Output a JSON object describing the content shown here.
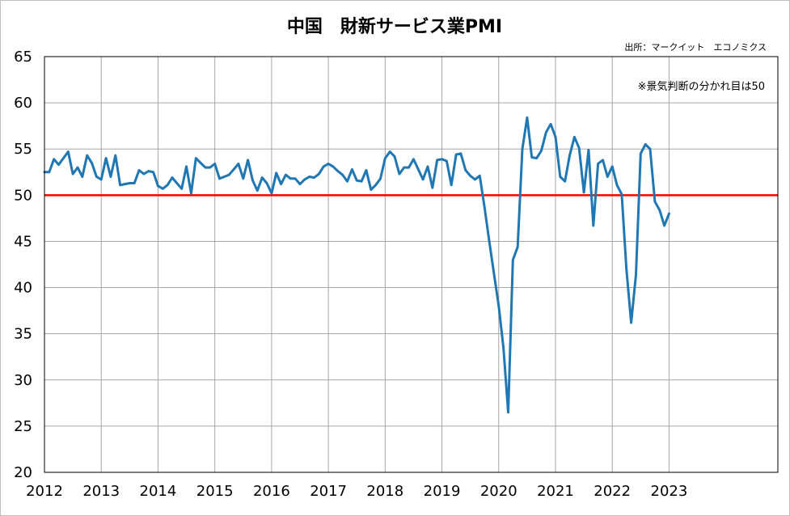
{
  "chart_data": {
    "type": "line",
    "title": "中国　財新サービス業PMI",
    "source": "出所：マークイット　エコノミクス",
    "note": "※景気判断の分かれ目は50",
    "ylim": [
      20,
      65
    ],
    "yticks": [
      "20",
      "25",
      "30",
      "35",
      "40",
      "45",
      "50",
      "55",
      "60",
      "65"
    ],
    "xticks": [
      "2012",
      "2013",
      "2014",
      "2015",
      "2016",
      "2017",
      "2018",
      "2019",
      "2020",
      "2021",
      "2022",
      "2023"
    ],
    "xlim": [
      "2012-01",
      "2024-12"
    ],
    "grid": true,
    "reference_line": {
      "value": 50,
      "color": "#ff0000"
    },
    "series": [
      {
        "color": "#1f77b4",
        "x": [
          "2012-01",
          "2012-02",
          "2012-03",
          "2012-04",
          "2012-05",
          "2012-06",
          "2012-07",
          "2012-08",
          "2012-09",
          "2012-10",
          "2012-11",
          "2012-12",
          "2013-01",
          "2013-02",
          "2013-03",
          "2013-04",
          "2013-05",
          "2013-06",
          "2013-07",
          "2013-08",
          "2013-09",
          "2013-10",
          "2013-11",
          "2013-12",
          "2014-01",
          "2014-02",
          "2014-03",
          "2014-04",
          "2014-05",
          "2014-06",
          "2014-07",
          "2014-08",
          "2014-09",
          "2014-10",
          "2014-11",
          "2014-12",
          "2015-01",
          "2015-02",
          "2015-03",
          "2015-04",
          "2015-05",
          "2015-06",
          "2015-07",
          "2015-08",
          "2015-09",
          "2015-10",
          "2015-11",
          "2015-12",
          "2016-01",
          "2016-02",
          "2016-03",
          "2016-04",
          "2016-05",
          "2016-06",
          "2016-07",
          "2016-08",
          "2016-09",
          "2016-10",
          "2016-11",
          "2016-12",
          "2017-01",
          "2017-02",
          "2017-03",
          "2017-04",
          "2017-05",
          "2017-06",
          "2017-07",
          "2017-08",
          "2017-09",
          "2017-10",
          "2017-11",
          "2017-12",
          "2018-01",
          "2018-02",
          "2018-03",
          "2018-04",
          "2018-05",
          "2018-06",
          "2018-07",
          "2018-08",
          "2018-09",
          "2018-10",
          "2018-11",
          "2018-12",
          "2019-01",
          "2019-02",
          "2019-03",
          "2019-04",
          "2019-05",
          "2019-06",
          "2019-07",
          "2019-08",
          "2019-09",
          "2019-10",
          "2019-11",
          "2019-12",
          "2020-01",
          "2020-02",
          "2020-03",
          "2020-04",
          "2020-05",
          "2020-06",
          "2020-07",
          "2020-08",
          "2020-09",
          "2020-10",
          "2020-11",
          "2020-12",
          "2021-01",
          "2021-02",
          "2021-03",
          "2021-04",
          "2021-05",
          "2021-06",
          "2021-07",
          "2021-08",
          "2021-09",
          "2021-10",
          "2021-11",
          "2021-12",
          "2022-01",
          "2022-02",
          "2022-03",
          "2022-04",
          "2022-05",
          "2022-06",
          "2022-07",
          "2022-08",
          "2022-09",
          "2022-10",
          "2022-11",
          "2022-12",
          "2023-01"
        ],
        "values": [
          52.5,
          52.5,
          53.9,
          53.3,
          54.0,
          54.7,
          52.3,
          53.0,
          52.0,
          54.3,
          53.5,
          52.0,
          51.7,
          54.0,
          52.0,
          54.3,
          51.1,
          51.2,
          51.3,
          51.3,
          52.7,
          52.3,
          52.6,
          52.5,
          51.0,
          50.7,
          51.1,
          51.9,
          51.3,
          50.7,
          53.1,
          50.2,
          54.0,
          53.5,
          53.0,
          53.0,
          53.4,
          51.8,
          52.0,
          52.2,
          52.8,
          53.4,
          51.8,
          53.8,
          51.6,
          50.5,
          51.9,
          51.3,
          50.2,
          52.4,
          51.2,
          52.2,
          51.8,
          51.8,
          51.2,
          51.7,
          52.0,
          51.9,
          52.3,
          53.1,
          53.4,
          53.1,
          52.6,
          52.2,
          51.5,
          52.8,
          51.6,
          51.5,
          52.7,
          50.6,
          51.1,
          51.8,
          54.0,
          54.7,
          54.2,
          52.3,
          53.0,
          53.0,
          53.9,
          52.8,
          51.7,
          53.1,
          50.8,
          53.8,
          53.9,
          53.7,
          51.1,
          54.4,
          54.5,
          52.7,
          52.1,
          51.7,
          52.1,
          48.7,
          45.0,
          41.5,
          38.0,
          33.5,
          26.5,
          43.0,
          44.4,
          55.0,
          58.4,
          54.1,
          54.0,
          54.8,
          56.8,
          57.7,
          56.3,
          52.0,
          51.5,
          54.3,
          56.3,
          55.1,
          50.3,
          54.9,
          46.7,
          53.4,
          53.8,
          52.0,
          53.1,
          51.1,
          50.1,
          42.0,
          36.2,
          41.4,
          54.5,
          55.5,
          55.0,
          49.3,
          48.4,
          46.7,
          48.0
        ]
      }
    ]
  }
}
